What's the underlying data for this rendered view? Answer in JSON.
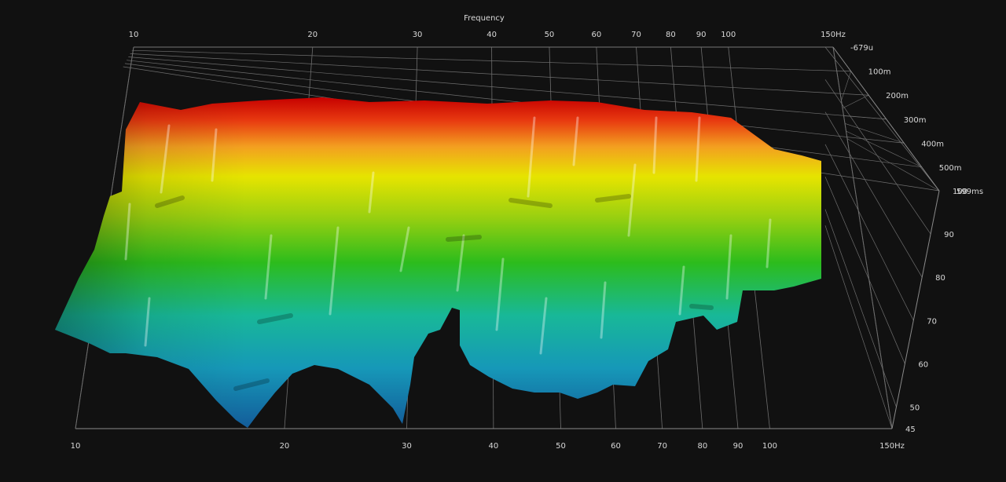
{
  "chart_data": {
    "type": "waterfall-3d",
    "title": "Frequency",
    "x_axis": {
      "scale": "log",
      "range": [
        10,
        150
      ],
      "ticks": [
        {
          "value": 10,
          "label": "10"
        },
        {
          "value": 20,
          "label": "20"
        },
        {
          "value": 30,
          "label": "30"
        },
        {
          "value": 40,
          "label": "40"
        },
        {
          "value": 50,
          "label": "50"
        },
        {
          "value": 60,
          "label": "60"
        },
        {
          "value": 70,
          "label": "70"
        },
        {
          "value": 80,
          "label": "80"
        },
        {
          "value": 90,
          "label": "90"
        },
        {
          "value": 100,
          "label": "100"
        },
        {
          "value": 150,
          "label": "150Hz"
        }
      ]
    },
    "time_axis": {
      "range": [
        -0.000679,
        0.599
      ],
      "ticks": [
        {
          "value": -0.000679,
          "label": "-679u"
        },
        {
          "value": 0.1,
          "label": "100m"
        },
        {
          "value": 0.2,
          "label": "200m"
        },
        {
          "value": 0.3,
          "label": "300m"
        },
        {
          "value": 0.4,
          "label": "400m"
        },
        {
          "value": 0.5,
          "label": "500m"
        },
        {
          "value": 0.599,
          "label": "599ms"
        }
      ]
    },
    "level_axis": {
      "range": [
        45,
        100
      ],
      "ticks": [
        {
          "value": 100,
          "label": "100"
        },
        {
          "value": 90,
          "label": "90"
        },
        {
          "value": 80,
          "label": "80"
        },
        {
          "value": 70,
          "label": "70"
        },
        {
          "value": 60,
          "label": "60"
        },
        {
          "value": 50,
          "label": "50"
        },
        {
          "value": 45,
          "label": "45"
        }
      ]
    },
    "grid": true,
    "colormap": [
      "#1565a8",
      "#18b6a0",
      "#22c41c",
      "#d8e000",
      "#f06010",
      "#cc0000"
    ]
  }
}
